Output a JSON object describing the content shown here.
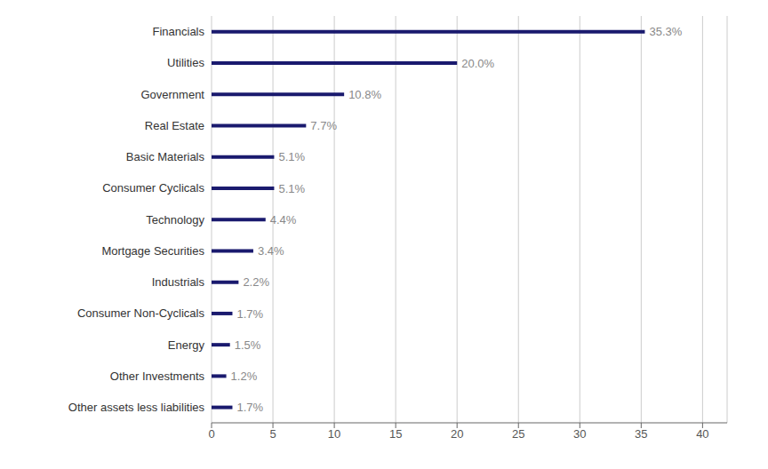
{
  "chart_data": {
    "type": "bar",
    "orientation": "horizontal",
    "categories": [
      "Other assets less liabilities",
      "Other Investments",
      "Energy",
      "Consumer Non-Cyclicals",
      "Industrials",
      "Mortgage Securities",
      "Technology",
      "Consumer Cyclicals",
      "Basic Materials",
      "Real Estate",
      "Government",
      "Utilities",
      "Financials"
    ],
    "values": [
      1.7,
      1.2,
      1.5,
      1.7,
      2.2,
      3.4,
      4.4,
      5.1,
      5.1,
      7.7,
      10.8,
      20.0,
      35.3
    ],
    "value_labels": [
      "1.7%",
      "1.2%",
      "1.5%",
      "1.7%",
      "2.2%",
      "3.4%",
      "4.4%",
      "5.1%",
      "5.1%",
      "7.7%",
      "10.8%",
      "20.0%",
      "35.3%"
    ],
    "color": "#1a1a6e",
    "xlim": [
      0,
      42
    ],
    "xticks": [
      0,
      5,
      10,
      15,
      20,
      25,
      30,
      35,
      40
    ],
    "grid": true,
    "data_labels": true
  }
}
